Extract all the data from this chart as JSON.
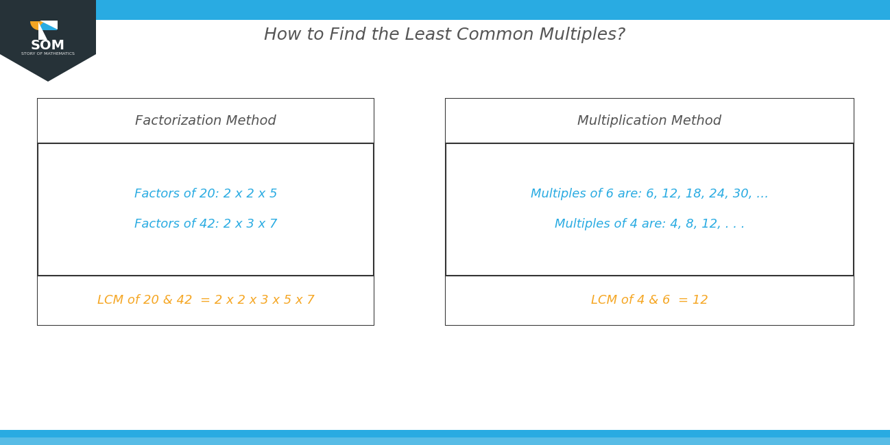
{
  "title": "How to Find the Least Common Multiples?",
  "title_color": "#555555",
  "title_fontsize": 18,
  "bg_color": "#ffffff",
  "header_stripe_color": "#29ABE2",
  "bottom_stripe_color": "#29ABE2",
  "logo_bg_color": "#263238",
  "logo_text": "SOM",
  "logo_subtext": "STORY OF MATHEMATICS",
  "left_box": {
    "header": "Factorization Method",
    "header_color": "#555555",
    "line1": "Factors of 20: 2 x 2 x 5",
    "line2": "Factors of 42: 2 x 3 x 7",
    "content_color": "#29ABE2",
    "footer": "LCM of 20 & 42  = 2 x 2 x 3 x 5 x 7",
    "footer_color": "#F5A623"
  },
  "right_box": {
    "header": "Multiplication Method",
    "header_color": "#555555",
    "line1": "Multiples of 6 are: 6, 12, 18, 24, 30, …",
    "line2": "Multiples of 4 are: 4, 8, 12, . . .",
    "content_color": "#29ABE2",
    "footer": "LCM of 4 & 6  = 12",
    "footer_color": "#F5A623"
  }
}
